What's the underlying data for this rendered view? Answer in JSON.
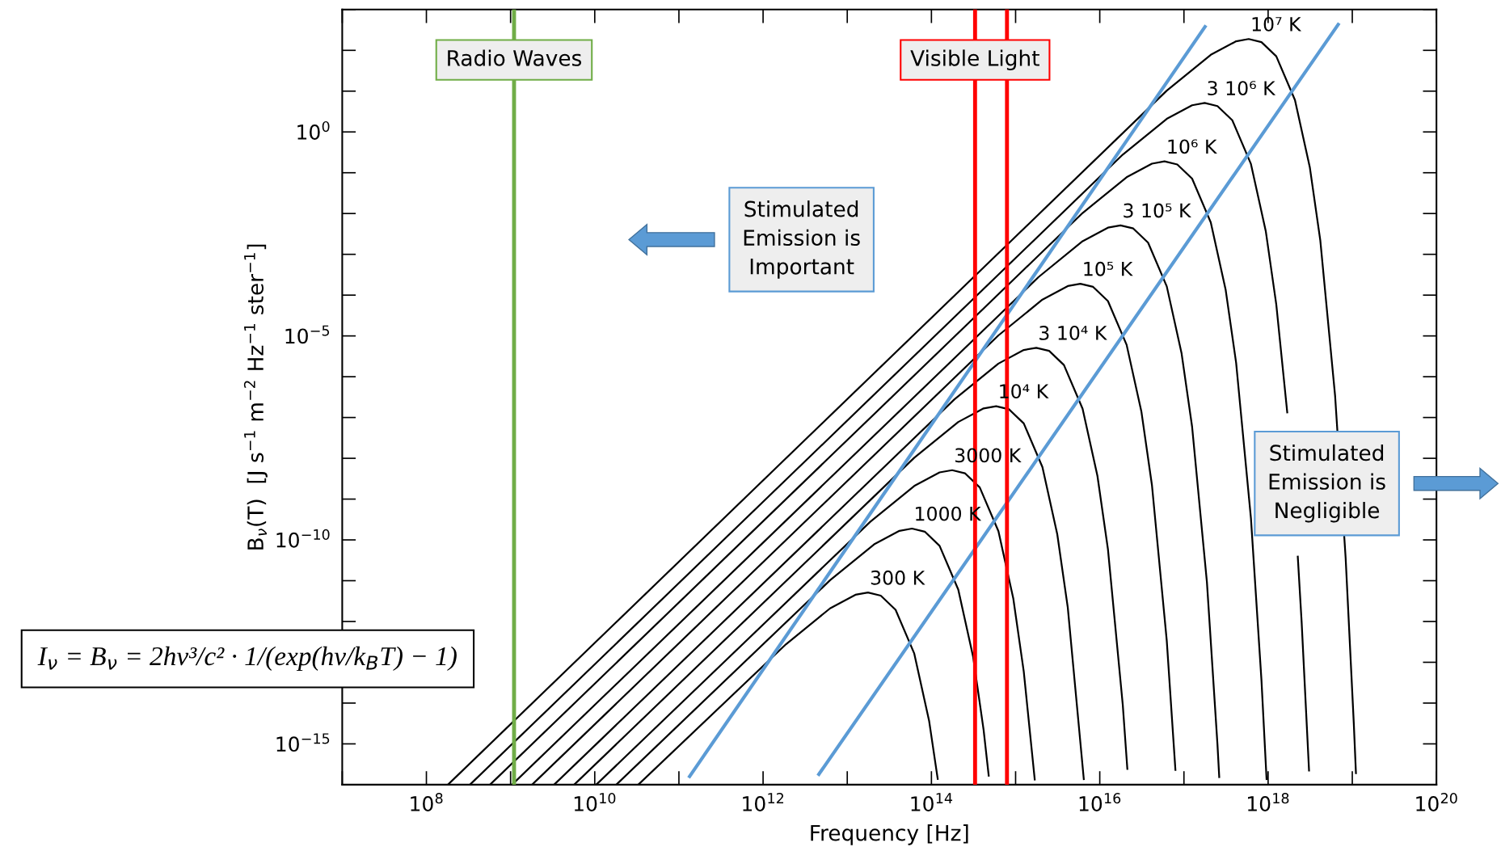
{
  "chart_data": {
    "type": "line",
    "xlabel": "Frequency [Hz]",
    "ylabel": "B$_{ν}$(T)  [J s$^{−1}$ m$^{−2}$ Hz$^{−1}$ ster$^{−1}$]",
    "log": "xy",
    "grid": false,
    "marker": "none",
    "line_style": "solid",
    "xlim": [
      10000000.0,
      1e+20
    ],
    "ylim": [
      1e-16,
      1000
    ],
    "xticks": [
      {
        "value": 100000000.0,
        "label": "10$^{8}$"
      },
      {
        "value": 10000000000.0,
        "label": "10$^{10}$"
      },
      {
        "value": 1000000000000.0,
        "label": "10$^{12}$"
      },
      {
        "value": 100000000000000.0,
        "label": "10$^{14}$"
      },
      {
        "value": 1e+16,
        "label": "10$^{16}$"
      },
      {
        "value": 1e+18,
        "label": "10$^{18}$"
      },
      {
        "value": 1e+20,
        "label": "10$^{20}$"
      }
    ],
    "yticks": [
      {
        "value": 1e-15,
        "label": "10$^{−15}$"
      },
      {
        "value": 1e-10,
        "label": "10$^{−10}$"
      },
      {
        "value": 1e-05,
        "label": "10$^{−5}$"
      },
      {
        "value": 1,
        "label": "10$^{0}$"
      }
    ],
    "series": [
      {
        "name": "300 K",
        "color": "#000000",
        "x": [
          32940000000.0,
          1876000000000.0,
          6252000000000.0,
          12500000000000.0,
          17630000000000.0,
          25010000000000.0,
          37510000000000.0,
          62520000000000.0,
          93780000000000.0,
          118800000000000.0
        ],
        "values": [
          1e-16,
          2.781e-13,
          2.096e-12,
          4.51e-12,
          5.118e-12,
          4.3e-12,
          1.934e-12,
          1.636e-13,
          3.717e-15,
          1.385e-16
        ]
      },
      {
        "name": "1000 K",
        "color": "#000000",
        "x": [
          18040000000.0,
          6252000000000.0,
          20840000000000.0,
          41680000000000.0,
          58770000000000.0,
          83360000000000.0,
          125000000000000.0,
          208400000000000.0,
          312600000000000.0,
          416800000000000.0,
          479300000000000.0
        ],
        "values": [
          1e-16,
          1.03e-11,
          7.764e-11,
          1.67e-10,
          1.896e-10,
          1.593e-10,
          7.164e-11,
          6.058e-12,
          1.377e-13,
          2.2e-15,
          1.666e-16
        ]
      },
      {
        "name": "3000 K",
        "color": "#000000",
        "x": [
          10420000000.0,
          18760000000000.0,
          62520000000000.0,
          125000000000000.0,
          176300000000000.0,
          250100000000000.0,
          375100000000000.0,
          625200000000000.0,
          937800000000000.0,
          1250000000000000.0,
          1688000000000000.0
        ],
        "values": [
          1e-16,
          2.781e-10,
          2.096e-09,
          4.51e-09,
          5.118e-09,
          4.301e-09,
          1.934e-09,
          1.636e-10,
          3.717e-12,
          5.94e-14,
          1.333e-16
        ]
      },
      {
        "name": "10⁴ K",
        "color": "#000000",
        "x": [
          5706000000.0,
          62520000000000.0,
          208400000000000.0,
          416800000000000.0,
          587700000000000.0,
          833600000000000.0,
          1250000000000000.0,
          2084000000000000.0,
          3126000000000000.0,
          4168000000000000.0,
          6460000000000000.0
        ],
        "values": [
          1e-16,
          1.03e-08,
          7.764e-08,
          1.67e-07,
          1.896e-07,
          1.593e-07,
          7.164e-08,
          6.058e-09,
          1.377e-10,
          2.2e-12,
          1.369e-16
        ]
      },
      {
        "name": "3 10⁴ K",
        "color": "#000000",
        "x": [
          3294000000.0,
          187600000000000.0,
          625200000000000.0,
          1250000000000000.0,
          1763000000000000.0,
          2501000000000000.0,
          3751000000000000.0,
          6252000000000000.0,
          9378000000000000.0,
          1.25e+16,
          1.876e+16,
          2.126e+16
        ],
        "values": [
          1e-16,
          2.781e-07,
          2.096e-06,
          4.51e-06,
          5.118e-06,
          4.301e-06,
          1.934e-06,
          1.636e-07,
          3.717e-09,
          5.94e-11,
          9.102e-15,
          2.43e-16
        ]
      },
      {
        "name": "10⁵ K",
        "color": "#000000",
        "x": [
          1804000000.0,
          625200000000000.0,
          2084000000000000.0,
          4168000000000000.0,
          5877000000000000.0,
          8336000000000000.0,
          1.25e+16,
          2.084e+16,
          3.126e+16,
          4.168e+16,
          6.252e+16,
          7.919e+16
        ],
        "values": [
          1e-16,
          1.03e-05,
          7.764e-05,
          0.000167,
          0.0001896,
          0.0001593,
          7.164e-05,
          6.058e-06,
          1.377e-07,
          2.2e-09,
          3.371e-13,
          2.3e-16
        ]
      },
      {
        "name": "3 10⁵ K",
        "color": "#000000",
        "x": [
          1042000000.0,
          1876000000000000.0,
          6252000000000000.0,
          1.25e+16,
          1.763e+16,
          2.501e+16,
          3.751e+16,
          6.252e+16,
          9.378e+16,
          1.25e+17,
          1.876e+17,
          2.501e+17,
          2.626e+17
        ],
        "values": [
          1e-16,
          0.0002781,
          0.002096,
          0.00451,
          0.005118,
          0.004301,
          0.001934,
          0.0001636,
          3.717e-06,
          5.94e-08,
          9.102e-12,
          9.797e-16,
          1.535e-16
        ]
      },
      {
        "name": "10⁶ K",
        "color": "#000000",
        "x": [
          570600000.0,
          6252000000000000.0,
          2.084e+16,
          4.168e+16,
          5.877e+16,
          8.336e+16,
          1.25e+17,
          2.084e+17,
          3.126e+17,
          4.168e+17,
          6.252e+17,
          8.336e+17,
          9.586e+17
        ],
        "values": [
          1e-16,
          0.0103,
          0.07764,
          0.167,
          0.1896,
          0.1593,
          0.07164,
          0.006058,
          0.0001377,
          2.2e-06,
          3.371e-10,
          3.628e-14,
          1.369e-16
        ]
      },
      {
        "name": "3 10⁶ K",
        "color": "#000000",
        "x": [
          329400000.0,
          1.876e+16,
          6.252e+16,
          1.25e+17,
          1.763e+17,
          2.501e+17,
          3.751e+17,
          6.252e+17,
          9.378e+17,
          1.25e+18,
          1.688e+18,
          1.876e+18,
          2.251e+18,
          2.501e+18,
          3.063e+18
        ],
        "values": [
          1e-16,
          0.2781,
          2.096,
          4.51,
          5.118,
          4.301,
          1.934,
          0.1636,
          0.003717,
          5.94e-05,
          1.333e-07,
          null,
          3.9e-11,
          9.797e-13,
          2.22e-16
        ]
      },
      {
        "name": "10⁷ K",
        "color": "#000000",
        "x": [
          180400000.0,
          6.252e+16,
          2.084e+17,
          4.168e+17,
          5.877e+17,
          8.336e+17,
          1.25e+18,
          2.084e+18,
          3.126e+18,
          4.168e+18,
          6.252e+18,
          8.336e+18,
          1.042e+19,
          1.105e+19
        ],
        "values": [
          1e-16,
          10.3,
          77.64,
          167.0,
          189.6,
          159.3,
          71.64,
          6.058,
          0.1377,
          0.0022,
          3.371e-07,
          3.628e-11,
          3.21e-15,
          1.91e-16
        ]
      },
      {
        "color": "#5b9bd5",
        "x": [
          134000000000.0,
          1.78e+17
        ],
        "values": [
          1.6e-16,
          380
        ]
      },
      {
        "color": "#5b9bd5",
        "x": [
          4600000000000.0,
          6.8e+18
        ],
        "values": [
          1.8e-16,
          430
        ]
      }
    ],
    "ref_lines": [
      {
        "axis": "x",
        "value": 1100000000.0,
        "label": "Radio Waves",
        "color": "#70ad47"
      },
      {
        "axis": "x",
        "value": 330000000000000.0,
        "label": "Visible Light",
        "color": "#ff0000"
      },
      {
        "axis": "x",
        "value": 790000000000000.0,
        "color": "#ff0000"
      }
    ],
    "annotations": [
      "Stimulated\nEmission is\nImportant",
      "Stimulated\nEmission is\nNegligible",
      "I$_{ν}$ = B$_{ν}$ = 2hν³/c² · 1/(exp(hν/k$_{B}$T) − 1)"
    ]
  }
}
